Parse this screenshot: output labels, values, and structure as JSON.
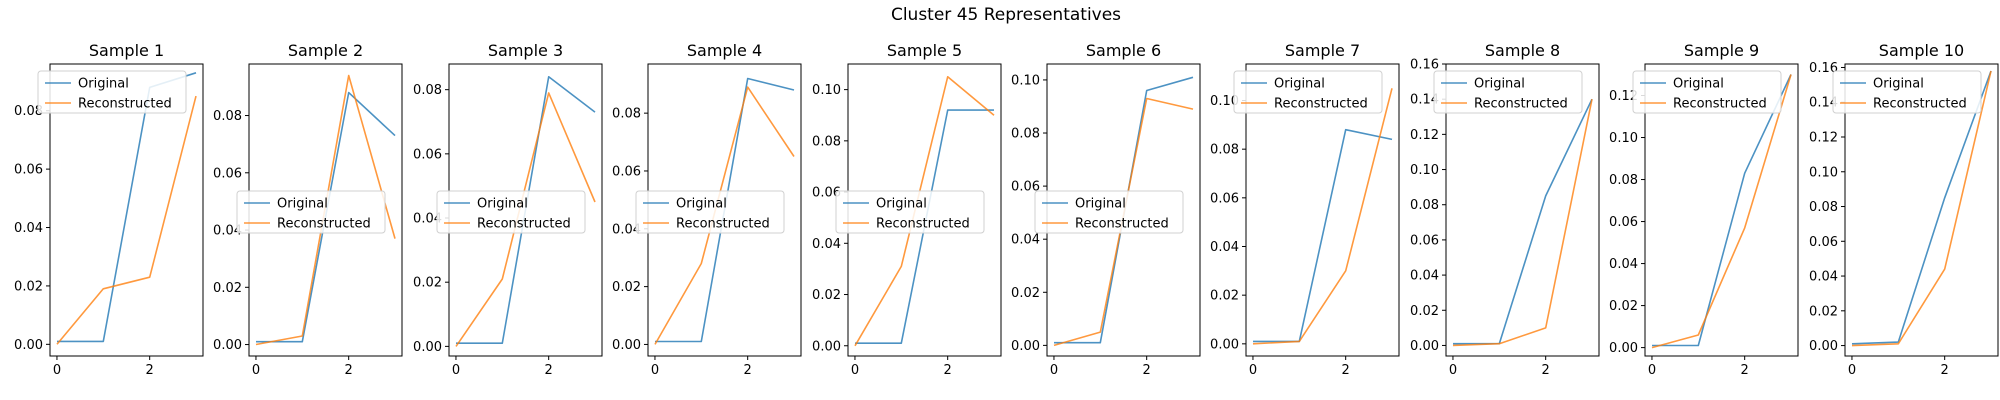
{
  "figure": {
    "suptitle": "Cluster 45 Representatives",
    "colors": {
      "original": "#1f77b4",
      "reconstructed": "#ff7f0e"
    }
  },
  "chart_data": [
    {
      "type": "line",
      "title": "Sample 1",
      "x": [
        0,
        1,
        2,
        3
      ],
      "xlim": [
        -0.15,
        3.15
      ],
      "ylim": [
        -0.004,
        0.096
      ],
      "xticks": [
        0,
        2
      ],
      "yticks": [
        0.0,
        0.02,
        0.04,
        0.06,
        0.08
      ],
      "ytick_labels": [
        "0.00",
        "0.02",
        "0.04",
        "0.06",
        "0.08"
      ],
      "legend_position": "upper left",
      "series": [
        {
          "name": "Original",
          "values": [
            0.001,
            0.001,
            0.088,
            0.093
          ]
        },
        {
          "name": "Reconstructed",
          "values": [
            0.0,
            0.019,
            0.023,
            0.085
          ]
        }
      ]
    },
    {
      "type": "line",
      "title": "Sample 2",
      "x": [
        0,
        1,
        2,
        3
      ],
      "xlim": [
        -0.15,
        3.15
      ],
      "ylim": [
        -0.004,
        0.098
      ],
      "xticks": [
        0,
        2
      ],
      "yticks": [
        0.0,
        0.02,
        0.04,
        0.06,
        0.08
      ],
      "ytick_labels": [
        "0.00",
        "0.02",
        "0.04",
        "0.06",
        "0.08"
      ],
      "legend_position": "center left",
      "series": [
        {
          "name": "Original",
          "values": [
            0.001,
            0.001,
            0.088,
            0.073
          ]
        },
        {
          "name": "Reconstructed",
          "values": [
            0.0,
            0.003,
            0.094,
            0.037
          ]
        }
      ]
    },
    {
      "type": "line",
      "title": "Sample 3",
      "x": [
        0,
        1,
        2,
        3
      ],
      "xlim": [
        -0.15,
        3.15
      ],
      "ylim": [
        -0.003,
        0.088
      ],
      "xticks": [
        0,
        2
      ],
      "yticks": [
        0.0,
        0.02,
        0.04,
        0.06,
        0.08
      ],
      "ytick_labels": [
        "0.00",
        "0.02",
        "0.04",
        "0.06",
        "0.08"
      ],
      "legend_position": "center left",
      "series": [
        {
          "name": "Original",
          "values": [
            0.001,
            0.001,
            0.084,
            0.073
          ]
        },
        {
          "name": "Reconstructed",
          "values": [
            0.0,
            0.021,
            0.079,
            0.045
          ]
        }
      ]
    },
    {
      "type": "line",
      "title": "Sample 4",
      "x": [
        0,
        1,
        2,
        3
      ],
      "xlim": [
        -0.15,
        3.15
      ],
      "ylim": [
        -0.004,
        0.097
      ],
      "xticks": [
        0,
        2
      ],
      "yticks": [
        0.0,
        0.02,
        0.04,
        0.06,
        0.08
      ],
      "ytick_labels": [
        "0.00",
        "0.02",
        "0.04",
        "0.06",
        "0.08"
      ],
      "legend_position": "center left",
      "series": [
        {
          "name": "Original",
          "values": [
            0.001,
            0.001,
            0.092,
            0.088
          ]
        },
        {
          "name": "Reconstructed",
          "values": [
            0.0,
            0.028,
            0.089,
            0.065
          ]
        }
      ]
    },
    {
      "type": "line",
      "title": "Sample 5",
      "x": [
        0,
        1,
        2,
        3
      ],
      "xlim": [
        -0.15,
        3.15
      ],
      "ylim": [
        -0.004,
        0.11
      ],
      "xticks": [
        0,
        2
      ],
      "yticks": [
        0.0,
        0.02,
        0.04,
        0.06,
        0.08,
        0.1
      ],
      "ytick_labels": [
        "0.00",
        "0.02",
        "0.04",
        "0.06",
        "0.08",
        "0.10"
      ],
      "legend_position": "center left",
      "series": [
        {
          "name": "Original",
          "values": [
            0.001,
            0.001,
            0.092,
            0.092
          ]
        },
        {
          "name": "Reconstructed",
          "values": [
            0.0,
            0.031,
            0.105,
            0.09
          ]
        }
      ]
    },
    {
      "type": "line",
      "title": "Sample 6",
      "x": [
        0,
        1,
        2,
        3
      ],
      "xlim": [
        -0.15,
        3.15
      ],
      "ylim": [
        -0.004,
        0.106
      ],
      "xticks": [
        0,
        2
      ],
      "yticks": [
        0.0,
        0.02,
        0.04,
        0.06,
        0.08,
        0.1
      ],
      "ytick_labels": [
        "0.00",
        "0.02",
        "0.04",
        "0.06",
        "0.08",
        "0.10"
      ],
      "legend_position": "center left",
      "series": [
        {
          "name": "Original",
          "values": [
            0.001,
            0.001,
            0.096,
            0.101
          ]
        },
        {
          "name": "Reconstructed",
          "values": [
            0.0,
            0.005,
            0.093,
            0.089
          ]
        }
      ]
    },
    {
      "type": "line",
      "title": "Sample 7",
      "x": [
        0,
        1,
        2,
        3
      ],
      "xlim": [
        -0.15,
        3.15
      ],
      "ylim": [
        -0.005,
        0.115
      ],
      "xticks": [
        0,
        2
      ],
      "yticks": [
        0.0,
        0.02,
        0.04,
        0.06,
        0.08,
        0.1
      ],
      "ytick_labels": [
        "0.00",
        "0.02",
        "0.04",
        "0.06",
        "0.08",
        "0.10"
      ],
      "legend_position": "upper left",
      "series": [
        {
          "name": "Original",
          "values": [
            0.001,
            0.001,
            0.088,
            0.084
          ]
        },
        {
          "name": "Reconstructed",
          "values": [
            0.0,
            0.001,
            0.03,
            0.105
          ]
        }
      ]
    },
    {
      "type": "line",
      "title": "Sample 8",
      "x": [
        0,
        1,
        2,
        3
      ],
      "xlim": [
        -0.15,
        3.15
      ],
      "ylim": [
        -0.006,
        0.16
      ],
      "xticks": [
        0,
        2
      ],
      "yticks": [
        0.0,
        0.02,
        0.04,
        0.06,
        0.08,
        0.1,
        0.12,
        0.14,
        0.16
      ],
      "ytick_labels": [
        "0.00",
        "0.02",
        "0.04",
        "0.06",
        "0.08",
        "0.10",
        "0.12",
        "0.14",
        "0.16"
      ],
      "legend_position": "upper left",
      "series": [
        {
          "name": "Original",
          "values": [
            0.001,
            0.001,
            0.085,
            0.14
          ]
        },
        {
          "name": "Reconstructed",
          "values": [
            0.0,
            0.001,
            0.01,
            0.14
          ]
        }
      ]
    },
    {
      "type": "line",
      "title": "Sample 9",
      "x": [
        0,
        1,
        2,
        3
      ],
      "xlim": [
        -0.15,
        3.15
      ],
      "ylim": [
        -0.004,
        0.135
      ],
      "xticks": [
        0,
        2
      ],
      "yticks": [
        0.0,
        0.02,
        0.04,
        0.06,
        0.08,
        0.1,
        0.12
      ],
      "ytick_labels": [
        "0.00",
        "0.02",
        "0.04",
        "0.06",
        "0.08",
        "0.10",
        "0.12"
      ],
      "legend_position": "upper left",
      "series": [
        {
          "name": "Original",
          "values": [
            0.001,
            0.001,
            0.083,
            0.13
          ]
        },
        {
          "name": "Reconstructed",
          "values": [
            0.0,
            0.006,
            0.057,
            0.13
          ]
        }
      ]
    },
    {
      "type": "line",
      "title": "Sample 10",
      "x": [
        0,
        1,
        2,
        3
      ],
      "xlim": [
        -0.15,
        3.15
      ],
      "ylim": [
        -0.006,
        0.162
      ],
      "xticks": [
        0,
        2
      ],
      "yticks": [
        0.0,
        0.02,
        0.04,
        0.06,
        0.08,
        0.1,
        0.12,
        0.14,
        0.16
      ],
      "ytick_labels": [
        "0.00",
        "0.02",
        "0.04",
        "0.06",
        "0.08",
        "0.10",
        "0.12",
        "0.14",
        "0.16"
      ],
      "legend_position": "upper left",
      "series": [
        {
          "name": "Original",
          "values": [
            0.001,
            0.002,
            0.085,
            0.158
          ]
        },
        {
          "name": "Reconstructed",
          "values": [
            0.0,
            0.001,
            0.044,
            0.158
          ]
        }
      ]
    }
  ]
}
